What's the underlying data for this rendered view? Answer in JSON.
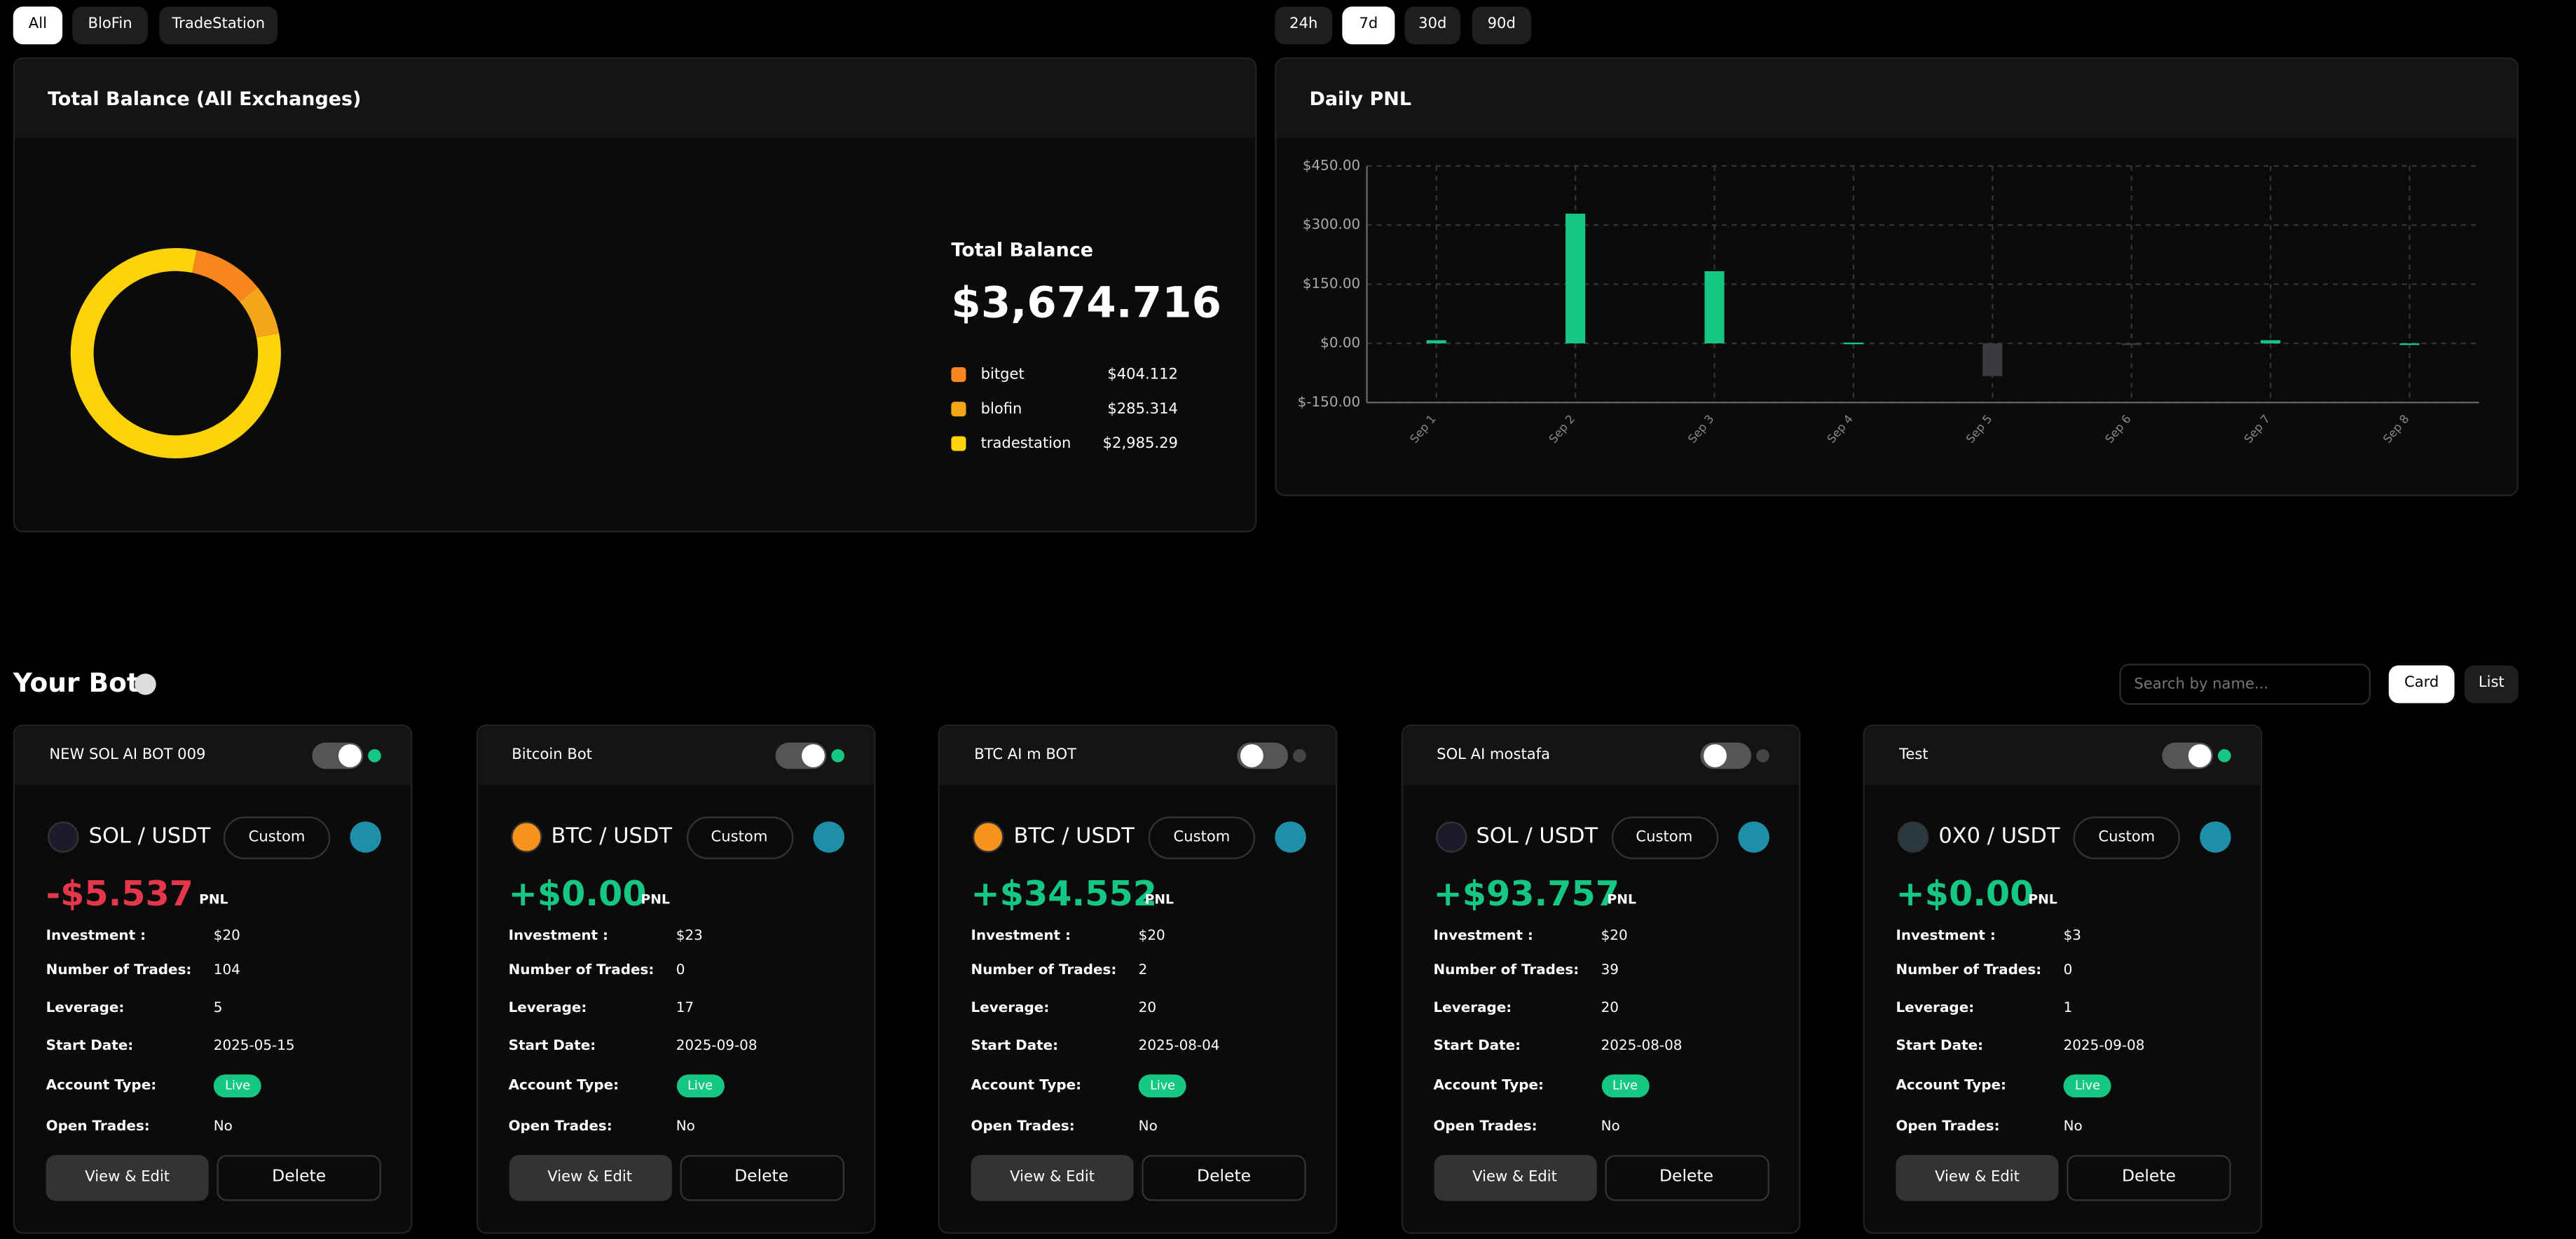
{
  "filters": [
    "All",
    "BloFin",
    "TradeStation"
  ],
  "ranges": [
    "24h",
    "7d",
    "30d",
    "90d"
  ],
  "balance": {
    "total_label": "Total Balance",
    "total_value": "$3,674.716"
  },
  "chart_data": [
    {
      "type": "pie",
      "title": "Total Balance (All Exchanges)",
      "categories": [
        "bitget",
        "blofin",
        "tradestation"
      ],
      "values": [
        404.112,
        285.314,
        2985.29
      ],
      "value_labels": [
        "$404.112",
        "$285.314",
        "$2,985.29"
      ],
      "colors": [
        "#f7861c",
        "#f5a51a",
        "#fcd20a"
      ]
    },
    {
      "type": "bar",
      "title": "Daily PNL",
      "categories": [
        "Sep 1",
        "Sep 2",
        "Sep 3",
        "Sep 4",
        "Sep 5",
        "Sep 6",
        "Sep 7",
        "Sep 8"
      ],
      "values": [
        8,
        329,
        183,
        2,
        -83,
        -2,
        8,
        0
      ],
      "colors": [
        "#16c784",
        "#16c784",
        "#16c784",
        "#16c784",
        "#3a3a3f",
        "#3a3a3f",
        "#16c784",
        "#16c784"
      ],
      "ylim": [
        -150,
        450
      ],
      "yticks": [
        {
          "value": -150,
          "label": "$-150.00"
        },
        {
          "value": 0,
          "label": "$0.00"
        },
        {
          "value": 150,
          "label": "$150.00"
        },
        {
          "value": 300,
          "label": "$300.00"
        },
        {
          "value": 450,
          "label": "$450.00"
        }
      ],
      "grid": true
    }
  ],
  "bots_section": {
    "title": "Your Bots",
    "search_placeholder": "Search by name...",
    "views": [
      "Card",
      "List"
    ]
  },
  "bot_labels": {
    "investment": "Investment :",
    "trades": "Number of Trades:",
    "leverage": "Leverage:",
    "start_date": "Start Date:",
    "account_type": "Account Type:",
    "open_trades": "Open Trades:",
    "pnl": "PNL",
    "custom": "Custom",
    "view": "View & Edit",
    "delete": "Delete"
  },
  "bots": [
    {
      "name": "NEW SOL AI BOT 009",
      "pair": "SOL / USDT",
      "icon_color": "#1b1b2b",
      "active": true,
      "pnl": "-$5.537",
      "pnl_color": "#e5374a",
      "investment": "$20",
      "trades": 104,
      "leverage": 5,
      "start_date": "2025-05-15",
      "account_type": "Live",
      "open_trades": "No"
    },
    {
      "name": "Bitcoin Bot",
      "pair": "BTC / USDT",
      "icon_color": "#f7931a",
      "active": true,
      "pnl": "+$0.00",
      "pnl_color": "#16c784",
      "investment": "$23",
      "trades": 0,
      "leverage": 17,
      "start_date": "2025-09-08",
      "account_type": "Live",
      "open_trades": "No"
    },
    {
      "name": "BTC AI m BOT",
      "pair": "BTC / USDT",
      "icon_color": "#f7931a",
      "active": false,
      "pnl": "+$34.552",
      "pnl_color": "#16c784",
      "investment": "$20",
      "trades": 2,
      "leverage": 20,
      "start_date": "2025-08-04",
      "account_type": "Live",
      "open_trades": "No"
    },
    {
      "name": "SOL AI mostafa",
      "pair": "SOL / USDT",
      "icon_color": "#1b1b2b",
      "active": false,
      "pnl": "+$93.757",
      "pnl_color": "#16c784",
      "investment": "$20",
      "trades": 39,
      "leverage": 20,
      "start_date": "2025-08-08",
      "account_type": "Live",
      "open_trades": "No"
    },
    {
      "name": "Test",
      "pair": "0X0 / USDT",
      "icon_color": "#2a3a40",
      "active": true,
      "pnl": "+$0.00",
      "pnl_color": "#16c784",
      "investment": "$3",
      "trades": 0,
      "leverage": 1,
      "start_date": "2025-09-08",
      "account_type": "Live",
      "open_trades": "No"
    }
  ]
}
